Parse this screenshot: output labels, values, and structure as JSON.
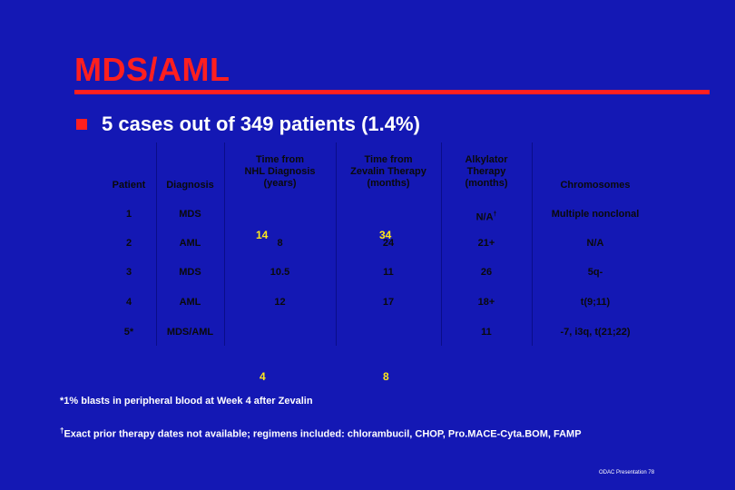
{
  "title": "MDS/AML",
  "bullet": "5 cases out of 349 patients (1.4%)",
  "table": {
    "headers": {
      "patient": "Patient",
      "diagnosis": "Diagnosis",
      "time_nhl": [
        "Time from",
        "NHL Diagnosis",
        "(years)"
      ],
      "time_zevalin": [
        "Time from",
        "Zevalin Therapy",
        "(months)"
      ],
      "alkylator": [
        "Alkylator",
        "Therapy",
        "(months)"
      ],
      "chromosomes": "Chromosomes"
    },
    "rows": [
      {
        "patient": "1",
        "diagnosis": "MDS",
        "time_nhl": "",
        "time_zevalin": "",
        "alkylator": "N/A",
        "alkylator_mark": "†",
        "chromosomes": "Multiple nonclonal"
      },
      {
        "patient": "2",
        "diagnosis": "AML",
        "time_nhl": "8",
        "time_zevalin": "24",
        "alkylator": "21+",
        "alkylator_mark": "",
        "chromosomes": "N/A"
      },
      {
        "patient": "3",
        "diagnosis": "MDS",
        "time_nhl": "10.5",
        "time_zevalin": "11",
        "alkylator": "26",
        "alkylator_mark": "",
        "chromosomes": "5q-"
      },
      {
        "patient": "4",
        "diagnosis": "AML",
        "time_nhl": "12",
        "time_zevalin": "17",
        "alkylator": "18+",
        "alkylator_mark": "",
        "chromosomes": "t(9;11)"
      },
      {
        "patient": "5*",
        "diagnosis": "MDS/AML",
        "time_nhl": "",
        "time_zevalin": "",
        "alkylator": "11",
        "alkylator_mark": "",
        "chromosomes": "-7, i3q, t(21;22)"
      }
    ],
    "overlays": {
      "nhl_row2": "14",
      "zevalin_row2": "34",
      "nhl_below": "4",
      "zevalin_below": "8"
    }
  },
  "footnotes": {
    "star": "*1% blasts in peripheral blood at Week 4 after Zevalin",
    "dagger_mark": "†",
    "dagger": "Exact prior therapy dates not available; regimens included:  chlorambucil, CHOP, Pro.MACE-Cyta.BOM, FAMP"
  },
  "footer": "ODAC Presentation  78",
  "colors": {
    "background": "#1418b4",
    "accent": "#ff1f1f",
    "highlight": "#ffe81a",
    "table_text": "#0a0a0a"
  }
}
